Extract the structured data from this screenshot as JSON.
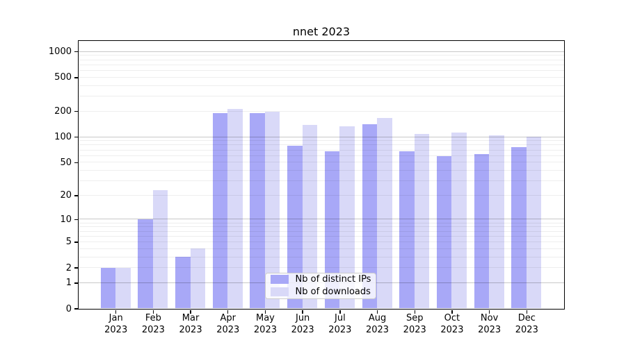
{
  "title": "nnet 2023",
  "chart_data": {
    "type": "bar",
    "title": "nnet 2023",
    "categories": [
      "Jan 2023",
      "Feb 2023",
      "Mar 2023",
      "Apr 2023",
      "May 2023",
      "Jun 2023",
      "Jul 2023",
      "Aug 2023",
      "Sep 2023",
      "Oct 2023",
      "Nov 2023",
      "Dec 2023"
    ],
    "months": [
      "Jan",
      "Feb",
      "Mar",
      "Apr",
      "May",
      "Jun",
      "Jul",
      "Aug",
      "Sep",
      "Oct",
      "Nov",
      "Dec"
    ],
    "year": "2023",
    "series": [
      {
        "name": "Nb of distinct IPs",
        "color": "#a8a8f7",
        "values": [
          2,
          10,
          3,
          190,
          189,
          78,
          68,
          140,
          68,
          59,
          63,
          75
        ]
      },
      {
        "name": "Nb of downloads",
        "color": "#d9d9f8",
        "values": [
          2,
          23,
          4,
          211,
          197,
          139,
          132,
          167,
          109,
          113,
          105,
          100
        ]
      }
    ],
    "xlabel": "",
    "ylabel": "",
    "y_scale": "log10(1+x)",
    "y_ticks": [
      0,
      1,
      2,
      5,
      10,
      20,
      50,
      100,
      200,
      500,
      1000
    ],
    "ylim": [
      0,
      1330
    ],
    "grid": "horizontal; faint minor lines at 2-9 per decade, darker lines at 1, 10, 100, 1000",
    "legend_position": "inside plot, lower center-right",
    "colors": {
      "bar_dark": "#a8a8f7",
      "bar_light": "#d9d9f8",
      "grid_major": "#c8c8c8",
      "grid_minor": "#efefef",
      "axis": "#000000"
    }
  }
}
